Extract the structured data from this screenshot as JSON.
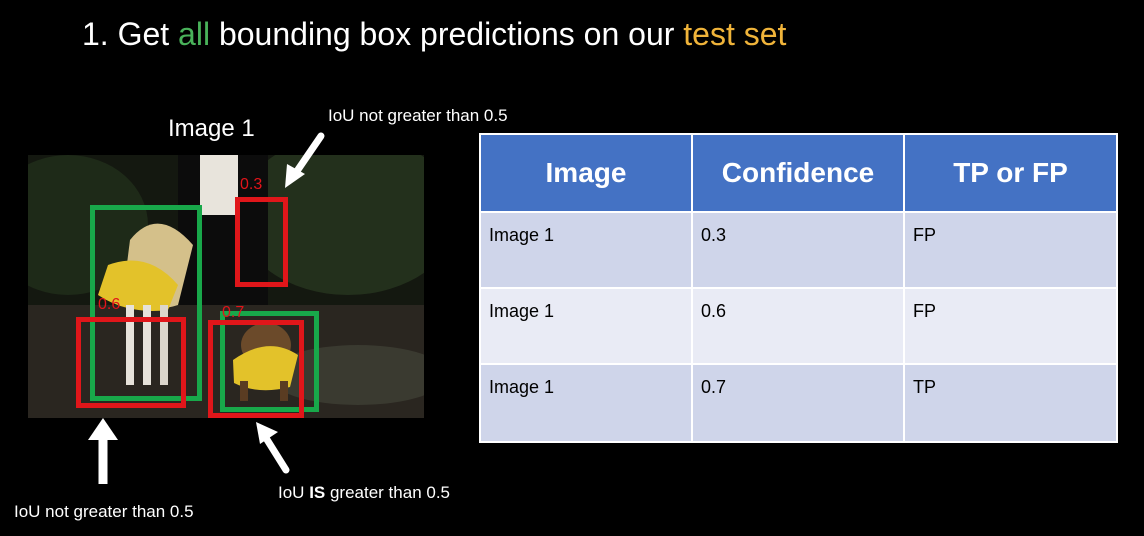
{
  "title": {
    "prefix": "1. Get ",
    "highlight1": "all",
    "middle": " bounding box predictions on our ",
    "highlight2": "test set",
    "highlight1_color": "#49b25a",
    "highlight2_color": "#f0b43a"
  },
  "image_label": "Image 1",
  "predictions_on_image": [
    {
      "confidence": "0.3"
    },
    {
      "confidence": "0.6"
    },
    {
      "confidence": "0.7"
    }
  ],
  "annotations": {
    "top_note": "IoU not greater than 0.5",
    "bottom_left_note": "IoU not greater than 0.5",
    "bottom_right_prefix": "IoU ",
    "bottom_right_bold": "IS",
    "bottom_right_suffix": " greater than 0.5"
  },
  "table": {
    "headers": [
      "Image",
      "Confidence",
      "TP or FP"
    ],
    "rows": [
      [
        "Image 1",
        "0.3",
        "FP"
      ],
      [
        "Image 1",
        "0.6",
        "FP"
      ],
      [
        "Image 1",
        "0.7",
        "TP"
      ]
    ],
    "header_color": "#4472c4"
  },
  "colors": {
    "ground_truth_box": "#18a84a",
    "prediction_box": "#e0161a"
  }
}
